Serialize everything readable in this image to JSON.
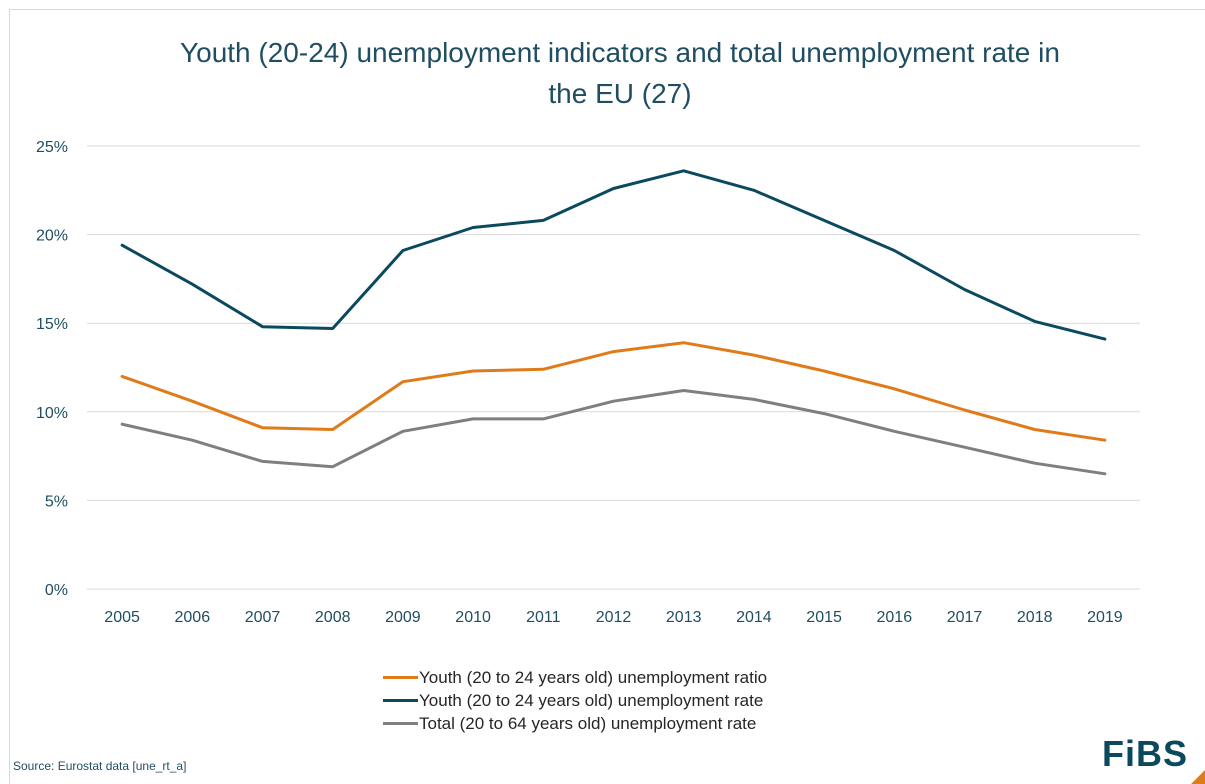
{
  "chart_data": {
    "type": "line",
    "title": "Youth (20-24) unemployment indicators and total unemployment rate in the EU (27)",
    "title_lines": [
      "Youth (20-24) unemployment indicators and total unemployment rate in",
      "the EU (27)"
    ],
    "xlabel": "",
    "ylabel": "",
    "categories": [
      "2005",
      "2006",
      "2007",
      "2008",
      "2009",
      "2010",
      "2011",
      "2012",
      "2013",
      "2014",
      "2015",
      "2016",
      "2017",
      "2018",
      "2019"
    ],
    "y_ticks": [
      "0%",
      "5%",
      "10%",
      "15%",
      "20%",
      "25%"
    ],
    "ylim": [
      0,
      25
    ],
    "grid": true,
    "legend_position": "bottom",
    "series": [
      {
        "name": "Youth (20 to 24 years old) unemployment ratio",
        "color": "#e07b1a",
        "values": [
          12.0,
          10.6,
          9.1,
          9.0,
          11.7,
          12.3,
          12.4,
          13.4,
          13.9,
          13.2,
          12.3,
          11.3,
          10.1,
          9.0,
          8.4
        ]
      },
      {
        "name": "Youth (20 to 24 years old) unemployment rate",
        "color": "#0b4a5e",
        "values": [
          19.4,
          17.2,
          14.8,
          14.7,
          19.1,
          20.4,
          20.8,
          22.6,
          23.6,
          22.5,
          20.8,
          19.1,
          16.9,
          15.1,
          14.1
        ]
      },
      {
        "name": "Total (20 to 64 years old) unemployment rate",
        "color": "#7f7f7f",
        "values": [
          9.3,
          8.4,
          7.2,
          6.9,
          8.9,
          9.6,
          9.6,
          10.6,
          11.2,
          10.7,
          9.9,
          8.9,
          8.0,
          7.1,
          6.5
        ]
      }
    ]
  },
  "source": "Source: Eurostat data [une_rt_a]",
  "logo": {
    "text": "FiBS",
    "accent_color": "#e07b1a",
    "text_color": "#0b4a5e"
  },
  "colors": {
    "grid": "#d9d9d9",
    "axis_text": "#1f4e62"
  }
}
